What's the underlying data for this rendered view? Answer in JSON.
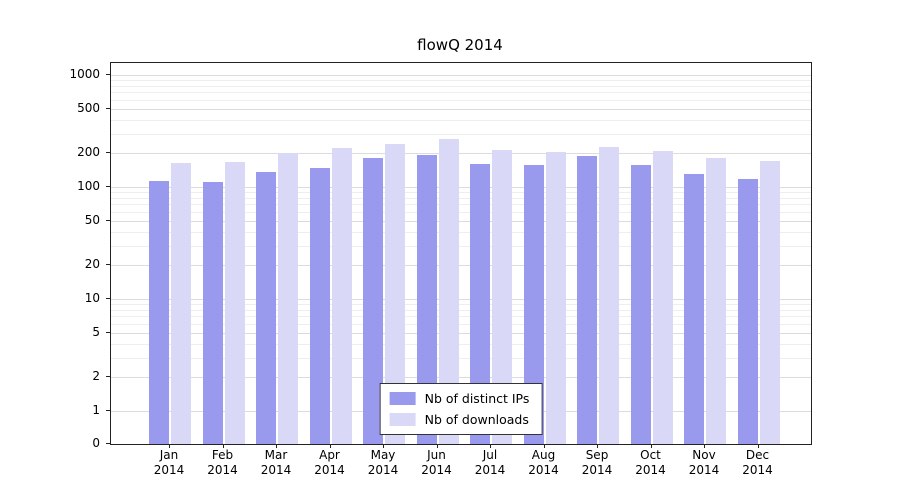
{
  "title": "flowQ 2014",
  "legend": {
    "series1": "Nb of distinct IPs",
    "series2": "Nb of downloads"
  },
  "colors": {
    "ips": "#9999ee",
    "downloads": "#d9d9f7",
    "grid_major": "#dcdcdc",
    "grid_minor": "#eeeeee",
    "axis": "#222222"
  },
  "chart_data": {
    "type": "bar",
    "title": "flowQ 2014",
    "months": [
      "Jan",
      "Feb",
      "Mar",
      "Apr",
      "May",
      "Jun",
      "Jul",
      "Aug",
      "Sep",
      "Oct",
      "Nov",
      "Dec"
    ],
    "year": "2014",
    "categories": [
      "Jan 2014",
      "Feb 2014",
      "Mar 2014",
      "Apr 2014",
      "May 2014",
      "Jun 2014",
      "Jul 2014",
      "Aug 2014",
      "Sep 2014",
      "Oct 2014",
      "Nov 2014",
      "Dec 2014"
    ],
    "series": [
      {
        "name": "Nb of distinct IPs",
        "color": "#9999ee",
        "values": [
          113,
          112,
          135,
          148,
          180,
          192,
          160,
          158,
          188,
          158,
          130,
          117
        ]
      },
      {
        "name": "Nb of downloads",
        "color": "#d9d9f7",
        "values": [
          165,
          168,
          200,
          222,
          243,
          268,
          215,
          205,
          227,
          210,
          183,
          170
        ]
      }
    ],
    "yscale": "symlog",
    "yticks": [
      1000,
      500,
      200,
      100,
      50,
      20,
      10,
      5,
      2,
      1,
      0
    ],
    "minor_yticks": [
      3,
      4,
      6,
      7,
      8,
      9,
      30,
      40,
      60,
      70,
      80,
      90,
      300,
      400,
      600,
      700,
      800,
      900
    ],
    "ylim": [
      0,
      1400
    ],
    "grid": true,
    "legend_position": "lower center"
  }
}
